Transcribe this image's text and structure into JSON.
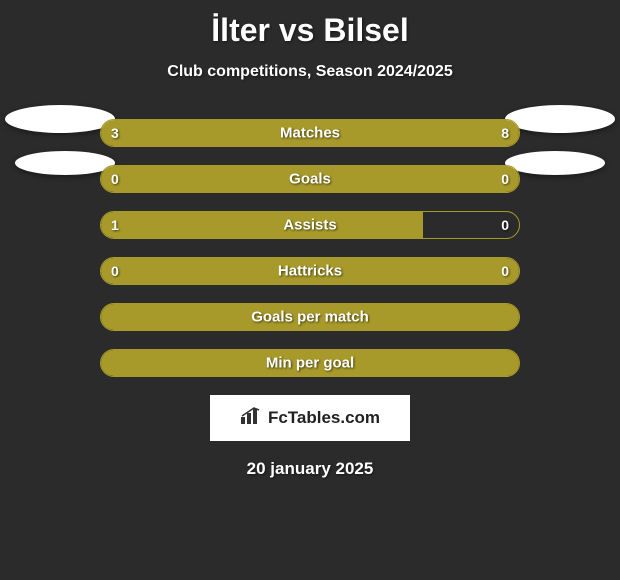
{
  "title": "İlter vs Bilsel",
  "subtitle": "Club competitions, Season 2024/2025",
  "date": "20 january 2025",
  "footer_brand": "FcTables.com",
  "colors": {
    "background": "#2b2b2b",
    "bar_fill": "#a89a2a",
    "bar_border": "#a89a2a",
    "bar_fill_alt": "#b0a030",
    "text": "#ffffff"
  },
  "stats": [
    {
      "label": "Matches",
      "left_value": "3",
      "right_value": "8",
      "left_pct": 27,
      "right_pct": 73,
      "show_values": true
    },
    {
      "label": "Goals",
      "left_value": "0",
      "right_value": "0",
      "left_pct": 50,
      "right_pct": 50,
      "show_values": true
    },
    {
      "label": "Assists",
      "left_value": "1",
      "right_value": "0",
      "left_pct": 77,
      "right_pct": 0,
      "show_values": true
    },
    {
      "label": "Hattricks",
      "left_value": "0",
      "right_value": "0",
      "left_pct": 50,
      "right_pct": 50,
      "show_values": true
    },
    {
      "label": "Goals per match",
      "left_value": "",
      "right_value": "",
      "left_pct": 100,
      "right_pct": 0,
      "show_values": false
    },
    {
      "label": "Min per goal",
      "left_value": "",
      "right_value": "",
      "left_pct": 100,
      "right_pct": 0,
      "show_values": false
    }
  ],
  "badge_positions": {
    "row1_top": 0
  }
}
